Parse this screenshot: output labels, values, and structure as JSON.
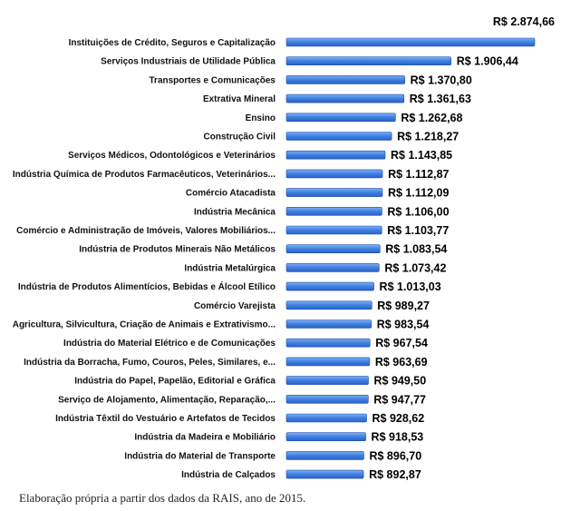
{
  "chart_data": {
    "type": "bar",
    "orientation": "horizontal",
    "title": "",
    "xlabel": "",
    "ylabel": "",
    "categories": [
      "Instituições de Crédito, Seguros e Capitalização",
      "Serviços Industriais de Utilidade Pública",
      "Transportes e Comunicações",
      "Extrativa Mineral",
      "Ensino",
      "Construção Civil",
      "Serviços Médicos, Odontológicos e Veterinários",
      "Indústria Química de Produtos Farmacêuticos, Veterinários...",
      "Comércio Atacadista",
      "Indústria Mecânica",
      "Comércio e Administração de Imóveis, Valores Mobiliários...",
      "Indústria de Produtos Minerais Não Metálicos",
      "Indústria Metalúrgica",
      "Indústria de Produtos Alimentícios, Bebidas e Álcool Etílico",
      "Comércio Varejista",
      "Agricultura, Silvicultura, Criação de Animais e Extrativismo...",
      "Indústria do Material Elétrico e de Comunicações",
      "Indústria da Borracha, Fumo, Couros, Peles, Similares, e...",
      "Indústria do Papel, Papelão, Editorial e Gráfica",
      "Serviço de Alojamento, Alimentação, Reparação,...",
      "Indústria Têxtil do Vestuário e Artefatos de Tecidos",
      "Indústria da Madeira e Mobiliário",
      "Indústria do Material de Transporte",
      "Indústria de Calçados"
    ],
    "values": [
      2874.66,
      1906.44,
      1370.8,
      1361.63,
      1262.68,
      1218.27,
      1143.85,
      1112.87,
      1112.09,
      1106.0,
      1103.77,
      1083.54,
      1073.42,
      1013.03,
      989.27,
      983.54,
      967.54,
      963.69,
      949.5,
      947.77,
      928.62,
      918.53,
      896.7,
      892.87
    ],
    "value_labels": [
      "R$ 2.874,66",
      "R$ 1.906,44",
      "R$ 1.370,80",
      "R$ 1.361,63",
      "R$ 1.262,68",
      "R$ 1.218,27",
      "R$ 1.143,85",
      "R$ 1.112,87",
      "R$ 1.112,09",
      "R$ 1.106,00",
      "R$ 1.103,77",
      "R$ 1.083,54",
      "R$ 1.073,42",
      "R$ 1.013,03",
      "R$ 989,27",
      "R$ 983,54",
      "R$ 967,54",
      "R$ 963,69",
      "R$ 949,50",
      "R$ 947,77",
      "R$ 928,62",
      "R$ 918,53",
      "R$ 896,70",
      "R$ 892,87"
    ],
    "xlim": [
      0,
      2874.66
    ],
    "grid": false,
    "bar_color": "#3f7fe0",
    "bar_edge_color": "#1a4fae"
  },
  "caption": "Elaboração própria a partir dos dados da RAIS, ano de 2015."
}
